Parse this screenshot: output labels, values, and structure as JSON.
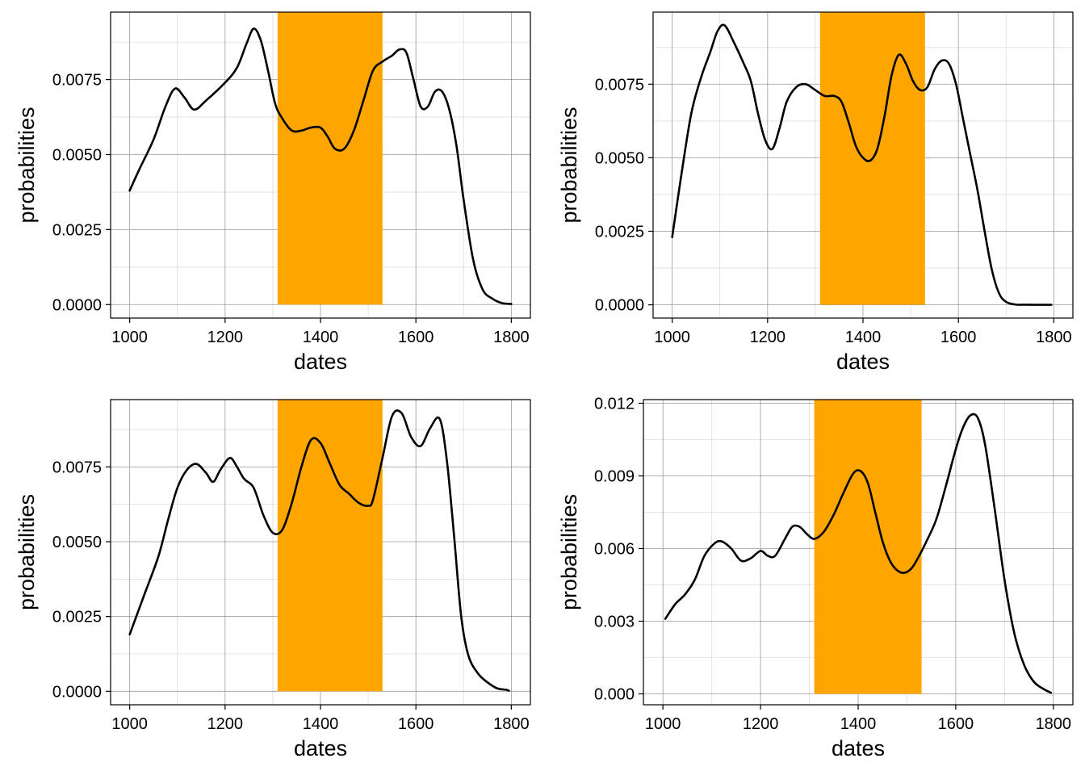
{
  "colors": {
    "highlight": "#FFA500",
    "curve": "#000000",
    "grid_major": "#9a9a9a",
    "grid_minor": "#dddddd",
    "frame": "#000000"
  },
  "chart_data": [
    {
      "type": "area",
      "xlabel": "dates",
      "ylabel": "probabilities",
      "xlim": [
        960,
        1840
      ],
      "ylim": [
        -0.00045,
        0.00975
      ],
      "xticks": [
        1000,
        1200,
        1400,
        1600,
        1800
      ],
      "xtick_labels": [
        "1000",
        "1200",
        "1400",
        "1600",
        "1800"
      ],
      "yticks": [
        0,
        0.0025,
        0.005,
        0.0075
      ],
      "ytick_labels": [
        "0.0000",
        "0.0025",
        "0.0050",
        "0.0075"
      ],
      "highlight": {
        "x0": 1310,
        "x1": 1530,
        "y0": 0,
        "y1": 0.00975
      },
      "grid": true,
      "series": [
        {
          "x": [
            1000,
            1020,
            1050,
            1075,
            1095,
            1115,
            1135,
            1160,
            1200,
            1225,
            1245,
            1260,
            1275,
            1290,
            1305,
            1320,
            1340,
            1360,
            1380,
            1400,
            1415,
            1430,
            1450,
            1470,
            1490,
            1510,
            1530,
            1550,
            1565,
            1580,
            1595,
            1610,
            1625,
            1640,
            1655,
            1670,
            1685,
            1700,
            1720,
            1740,
            1760,
            1780,
            1800
          ],
          "y": [
            0.0038,
            0.0045,
            0.0055,
            0.0066,
            0.0072,
            0.0069,
            0.0065,
            0.0068,
            0.0074,
            0.0079,
            0.0087,
            0.0092,
            0.0088,
            0.0078,
            0.0067,
            0.0062,
            0.0058,
            0.0058,
            0.0059,
            0.0059,
            0.0056,
            0.0052,
            0.0052,
            0.0058,
            0.0068,
            0.0078,
            0.0081,
            0.0083,
            0.0085,
            0.0084,
            0.0075,
            0.0066,
            0.0066,
            0.0071,
            0.0071,
            0.0065,
            0.0053,
            0.0035,
            0.0015,
            0.0005,
            0.0002,
            5e-05,
            2e-05
          ]
        }
      ]
    },
    {
      "type": "area",
      "xlabel": "dates",
      "ylabel": "probabilities",
      "xlim": [
        960,
        1840
      ],
      "ylim": [
        -0.00045,
        0.00995
      ],
      "xticks": [
        1000,
        1200,
        1400,
        1600,
        1800
      ],
      "xtick_labels": [
        "1000",
        "1200",
        "1400",
        "1600",
        "1800"
      ],
      "yticks": [
        0,
        0.0025,
        0.005,
        0.0075
      ],
      "ytick_labels": [
        "0.0000",
        "0.0025",
        "0.0050",
        "0.0075"
      ],
      "highlight": {
        "x0": 1310,
        "x1": 1530,
        "y0": 0,
        "y1": 0.00995
      },
      "grid": true,
      "series": [
        {
          "x": [
            1000,
            1020,
            1040,
            1060,
            1080,
            1095,
            1110,
            1130,
            1150,
            1165,
            1180,
            1195,
            1210,
            1225,
            1240,
            1260,
            1280,
            1300,
            1320,
            1340,
            1355,
            1370,
            1385,
            1400,
            1415,
            1430,
            1445,
            1460,
            1475,
            1490,
            1505,
            1520,
            1535,
            1550,
            1565,
            1580,
            1595,
            1610,
            1625,
            1640,
            1655,
            1670,
            1685,
            1700,
            1720,
            1740,
            1760,
            1780,
            1795
          ],
          "y": [
            0.0023,
            0.0045,
            0.0065,
            0.0077,
            0.0086,
            0.0093,
            0.0095,
            0.0089,
            0.0082,
            0.0076,
            0.0065,
            0.0056,
            0.0053,
            0.006,
            0.0069,
            0.0074,
            0.0075,
            0.0073,
            0.0071,
            0.0071,
            0.0069,
            0.0062,
            0.0054,
            0.005,
            0.0049,
            0.0053,
            0.0064,
            0.0078,
            0.0085,
            0.0082,
            0.0076,
            0.0073,
            0.0074,
            0.008,
            0.0083,
            0.0082,
            0.0075,
            0.0063,
            0.0051,
            0.0039,
            0.0025,
            0.0012,
            0.0004,
            0.0001,
            1e-05,
            5e-06,
            2e-06,
            1e-06,
            1e-06
          ]
        }
      ]
    },
    {
      "type": "area",
      "xlabel": "dates",
      "ylabel": "probabilities",
      "xlim": [
        960,
        1840
      ],
      "ylim": [
        -0.00045,
        0.00975
      ],
      "xticks": [
        1000,
        1200,
        1400,
        1600,
        1800
      ],
      "xtick_labels": [
        "1000",
        "1200",
        "1400",
        "1600",
        "1800"
      ],
      "yticks": [
        0,
        0.0025,
        0.005,
        0.0075
      ],
      "ytick_labels": [
        "0.0000",
        "0.0025",
        "0.0050",
        "0.0075"
      ],
      "highlight": {
        "x0": 1310,
        "x1": 1530,
        "y0": 0,
        "y1": 0.00975
      },
      "grid": true,
      "series": [
        {
          "x": [
            1000,
            1030,
            1060,
            1080,
            1100,
            1120,
            1140,
            1160,
            1175,
            1190,
            1210,
            1225,
            1240,
            1260,
            1280,
            1300,
            1320,
            1340,
            1360,
            1380,
            1400,
            1420,
            1440,
            1460,
            1480,
            1500,
            1510,
            1530,
            1550,
            1570,
            1590,
            1610,
            1630,
            1650,
            1665,
            1680,
            1695,
            1710,
            1730,
            1750,
            1770,
            1790,
            1795
          ],
          "y": [
            0.0019,
            0.0032,
            0.0045,
            0.0057,
            0.0068,
            0.0074,
            0.0076,
            0.0073,
            0.007,
            0.0074,
            0.0078,
            0.0075,
            0.0071,
            0.0068,
            0.0059,
            0.0053,
            0.0054,
            0.0063,
            0.0075,
            0.0084,
            0.0083,
            0.0076,
            0.0069,
            0.0066,
            0.0063,
            0.0062,
            0.0064,
            0.0078,
            0.0092,
            0.0093,
            0.0085,
            0.0082,
            0.0088,
            0.0091,
            0.0077,
            0.0052,
            0.0025,
            0.0012,
            0.0006,
            0.0003,
            0.0001,
            5e-05,
            2e-05
          ]
        }
      ]
    },
    {
      "type": "area",
      "xlabel": "dates",
      "ylabel": "probabilities",
      "xlim": [
        960,
        1840
      ],
      "ylim": [
        -0.00045,
        0.01215
      ],
      "xticks": [
        1000,
        1200,
        1400,
        1600,
        1800
      ],
      "xtick_labels": [
        "1000",
        "1200",
        "1400",
        "1600",
        "1800"
      ],
      "yticks": [
        0,
        0.003,
        0.006,
        0.009,
        0.012
      ],
      "ytick_labels": [
        "0.000",
        "0.003",
        "0.006",
        "0.009",
        "0.012"
      ],
      "highlight": {
        "x0": 1310,
        "x1": 1530,
        "y0": 0,
        "y1": 0.01215
      },
      "grid": true,
      "series": [
        {
          "x": [
            1005,
            1025,
            1045,
            1065,
            1085,
            1105,
            1120,
            1140,
            1160,
            1180,
            1200,
            1215,
            1230,
            1250,
            1265,
            1280,
            1295,
            1310,
            1330,
            1350,
            1370,
            1390,
            1405,
            1420,
            1435,
            1450,
            1465,
            1480,
            1495,
            1510,
            1525,
            1540,
            1560,
            1580,
            1600,
            1615,
            1630,
            1645,
            1660,
            1680,
            1700,
            1720,
            1740,
            1760,
            1780,
            1795
          ],
          "y": [
            0.0031,
            0.0037,
            0.0041,
            0.0047,
            0.0057,
            0.0062,
            0.0063,
            0.006,
            0.0055,
            0.0056,
            0.0059,
            0.0057,
            0.0057,
            0.0064,
            0.0069,
            0.0069,
            0.0066,
            0.0064,
            0.0067,
            0.0074,
            0.0083,
            0.0091,
            0.0092,
            0.0087,
            0.0075,
            0.0063,
            0.0055,
            0.0051,
            0.005,
            0.0052,
            0.0057,
            0.0063,
            0.0072,
            0.0086,
            0.0101,
            0.011,
            0.0115,
            0.0114,
            0.0103,
            0.0076,
            0.0047,
            0.0025,
            0.0012,
            0.0005,
            0.0002,
            5e-05
          ]
        }
      ]
    }
  ]
}
